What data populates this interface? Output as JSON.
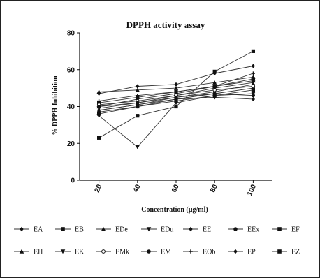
{
  "chart_data": {
    "type": "line",
    "title": "DPPH activity assay",
    "xlabel": "Concentration (µg/ml)",
    "ylabel": "% DPPH Inhibition",
    "x": [
      20,
      40,
      60,
      80,
      100
    ],
    "xlim": [
      10,
      110
    ],
    "ylim": [
      0,
      80
    ],
    "yticks": [
      0,
      20,
      40,
      60,
      80
    ],
    "grid": false,
    "legend_position": "bottom",
    "series": [
      {
        "name": "EA",
        "marker": "diamond",
        "values": [
          47,
          51,
          52,
          58,
          62
        ]
      },
      {
        "name": "EB",
        "marker": "square",
        "values": [
          42,
          45,
          48,
          51,
          55
        ]
      },
      {
        "name": "EDe",
        "marker": "triangle",
        "values": [
          40,
          44,
          47,
          51,
          54
        ]
      },
      {
        "name": "EDu",
        "marker": "triangle-down",
        "values": [
          39,
          42,
          46,
          50,
          53
        ]
      },
      {
        "name": "EE",
        "marker": "diamond",
        "values": [
          38,
          41,
          45,
          48,
          52
        ]
      },
      {
        "name": "EEx",
        "marker": "circle",
        "values": [
          37,
          40,
          44,
          47,
          50
        ]
      },
      {
        "name": "EF",
        "marker": "square",
        "values": [
          36,
          40,
          43,
          46,
          49
        ]
      },
      {
        "name": "EH",
        "marker": "triangle",
        "values": [
          48,
          49,
          50,
          53,
          56
        ]
      },
      {
        "name": "EK",
        "marker": "triangle-down",
        "values": [
          35,
          18,
          42,
          46,
          47
        ]
      },
      {
        "name": "EMk",
        "marker": "circle-open",
        "values": [
          41,
          43,
          46,
          49,
          51
        ]
      },
      {
        "name": "EM",
        "marker": "circle",
        "values": [
          40,
          42,
          45,
          47,
          46
        ]
      },
      {
        "name": "EOb",
        "marker": "plus",
        "values": [
          43,
          46,
          48,
          51,
          58
        ]
      },
      {
        "name": "EP",
        "marker": "diamond",
        "values": [
          38,
          41,
          44,
          45,
          44
        ]
      },
      {
        "name": "EZ",
        "marker": "square",
        "values": [
          23,
          35,
          40,
          59,
          70
        ]
      }
    ]
  }
}
